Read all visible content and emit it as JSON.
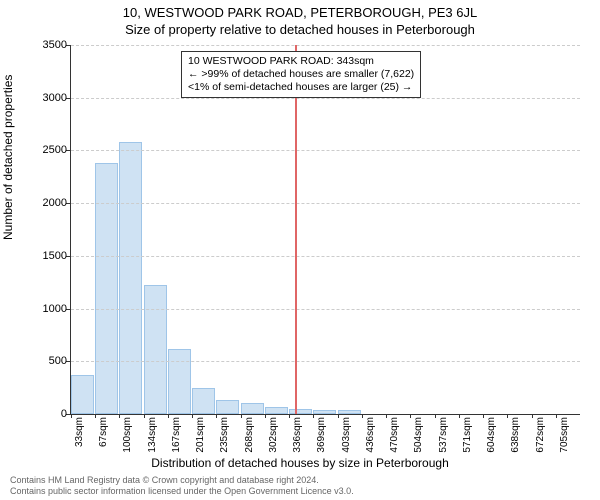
{
  "title_line1": "10, WESTWOOD PARK ROAD, PETERBOROUGH, PE3 6JL",
  "title_line2": "Size of property relative to detached houses in Peterborough",
  "ylabel": "Number of detached properties",
  "xlabel": "Distribution of detached houses by size in Peterborough",
  "chart": {
    "type": "bar",
    "ylim": [
      0,
      3500
    ],
    "ytick_step": 500,
    "bar_fill": "#cfe2f3",
    "bar_border": "#9fc5e8",
    "grid_color": "#cccccc",
    "vline_color": "#e06666",
    "vline_x_sqm": 343,
    "x_start": 33,
    "x_step": 33.5,
    "categories": [
      "33sqm",
      "67sqm",
      "100sqm",
      "134sqm",
      "167sqm",
      "201sqm",
      "235sqm",
      "268sqm",
      "302sqm",
      "336sqm",
      "369sqm",
      "403sqm",
      "436sqm",
      "470sqm",
      "504sqm",
      "537sqm",
      "571sqm",
      "604sqm",
      "638sqm",
      "672sqm",
      "705sqm"
    ],
    "values": [
      370,
      2380,
      2580,
      1220,
      620,
      250,
      130,
      100,
      70,
      50,
      40,
      35,
      0,
      0,
      0,
      0,
      0,
      0,
      0,
      0,
      0
    ]
  },
  "annotation": {
    "line1": "10 WESTWOOD PARK ROAD: 343sqm",
    "line2": "← >99% of detached houses are smaller (7,622)",
    "line3": "<1% of semi-detached houses are larger (25) →"
  },
  "footer_line1": "Contains HM Land Registry data © Crown copyright and database right 2024.",
  "footer_line2": "Contains public sector information licensed under the Open Government Licence v3.0."
}
